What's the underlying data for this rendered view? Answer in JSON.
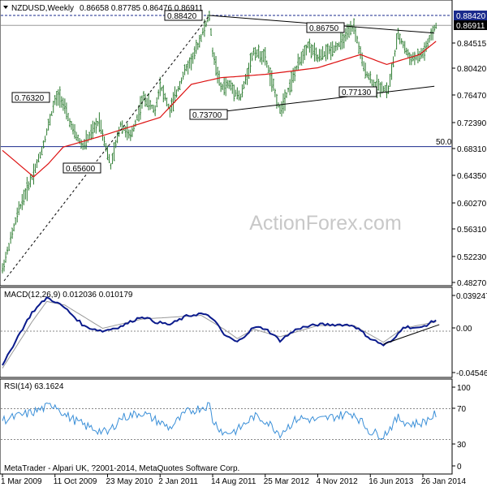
{
  "header": {
    "symbol_line": "NZDUSD,Weekly",
    "ohlc": "0.86658 0.87785 0.86476 0.86911"
  },
  "watermark": "ActionForex.com",
  "footer": "MetaTrader - Alpari UK, ?2001-2014, MetaQuotes Software Corp.",
  "colors": {
    "bars": "#2e7d32",
    "sma": "#dd1111",
    "macd": "#0a1a8c",
    "signal": "#999999",
    "rsi": "#3a8fd8",
    "tag_high": "#1a2a8c",
    "tag_last": "#000000"
  },
  "chart_data": [
    {
      "type": "candlestick",
      "panel": "price",
      "ylim": [
        0.4827,
        0.8936
      ],
      "y_ticks": [
        "0.88420",
        "0.86911",
        "0.84515",
        "0.80420",
        "0.76470",
        "0.72390",
        "0.68310",
        "0.64350",
        "0.60270",
        "0.56310",
        "0.52230",
        "0.48270"
      ],
      "x_ticks": [
        "1 Mar 2009",
        "11 Oct 2009",
        "23 May 2010",
        "2 Jan 2011",
        "14 Aug 2011",
        "25 Mar 2012",
        "4 Nov 2012",
        "16 Jun 2013",
        "26 Jan 2014"
      ],
      "price_tags": [
        {
          "text": "0.88420",
          "role": "high"
        },
        {
          "text": "0.86911",
          "role": "last"
        }
      ],
      "annotations": [
        "0.88420",
        "0.86750",
        "0.76320",
        "0.73700",
        "0.77130",
        "0.65600",
        "50.0"
      ],
      "levels": [
        0.8842,
        0.6845
      ],
      "price_path": [
        [
          "1 Mar 2009",
          0.5
        ],
        [
          "10 May 2009",
          0.59
        ],
        [
          "5 Jul 2009",
          0.64
        ],
        [
          "16 Aug 2009",
          0.68
        ],
        [
          "11 Oct 2009",
          0.755
        ],
        [
          "1 Nov 2009",
          0.7632
        ],
        [
          "27 Dec 2009",
          0.71
        ],
        [
          "7 Feb 2010",
          0.686
        ],
        [
          "18 Apr 2010",
          0.725
        ],
        [
          "6 Jun 2010",
          0.656
        ],
        [
          "18 Jul 2010",
          0.72
        ],
        [
          "29 Aug 2010",
          0.7
        ],
        [
          "24 Oct 2010",
          0.76
        ],
        [
          "12 Dec 2010",
          0.74
        ],
        [
          "2 Jan 2011",
          0.78
        ],
        [
          "13 Feb 2011",
          0.74
        ],
        [
          "17 Apr 2011",
          0.8
        ],
        [
          "22 May 2011",
          0.82
        ],
        [
          "31 Jul 2011",
          0.8842
        ],
        [
          "14 Aug 2011",
          0.83
        ],
        [
          "18 Sep 2011",
          0.775
        ],
        [
          "23 Oct 2011",
          0.78
        ],
        [
          "11 Dec 2011",
          0.76
        ],
        [
          "5 Feb 2012",
          0.83
        ],
        [
          "25 Mar 2012",
          0.82
        ],
        [
          "27 May 2012",
          0.74
        ],
        [
          "12 Aug 2012",
          0.81
        ],
        [
          "23 Sep 2012",
          0.84
        ],
        [
          "4 Nov 2012",
          0.82
        ],
        [
          "3 Feb 2013",
          0.84
        ],
        [
          "7 Apr 2013",
          0.8675
        ],
        [
          "19 May 2013",
          0.805
        ],
        [
          "30 Jun 2013",
          0.78
        ],
        [
          "1 Sep 2013",
          0.7713
        ],
        [
          "13 Oct 2013",
          0.855
        ],
        [
          "1 Dec 2013",
          0.82
        ],
        [
          "5 Jan 2014",
          0.82
        ],
        [
          "2 Feb 2014",
          0.83
        ],
        [
          "23 Mar 2014",
          0.8691
        ]
      ],
      "sma_path": [
        [
          "1 Mar 2009",
          0.68
        ],
        [
          "12 Jul 2009",
          0.64
        ],
        [
          "13 Sep 2009",
          0.66
        ],
        [
          "15 Nov 2009",
          0.685
        ],
        [
          "11 Apr 2010",
          0.7
        ],
        [
          "2 Jan 2011",
          0.73
        ],
        [
          "15 May 2011",
          0.78
        ],
        [
          "18 Sep 2011",
          0.79
        ],
        [
          "25 Mar 2012",
          0.795
        ],
        [
          "4 Nov 2012",
          0.805
        ],
        [
          "5 May 2013",
          0.825
        ],
        [
          "25 Aug 2013",
          0.81
        ],
        [
          "12 Jan 2014",
          0.825
        ],
        [
          "23 Mar 2014",
          0.845
        ]
      ],
      "trendlines": [
        {
          "from": [
            "31 Jul 2011",
            0.8842
          ],
          "to": [
            "16 Mar 2014",
            0.8575
          ],
          "style": "solid"
        },
        {
          "from": [
            "14 Aug 2011",
            0.737
          ],
          "to": [
            "16 Mar 2014",
            0.777
          ],
          "style": "solid"
        },
        {
          "from": [
            "8 Mar 2009",
            0.4827
          ],
          "to": [
            "31 Jul 2011",
            0.8842
          ],
          "style": "dashed"
        }
      ]
    },
    {
      "type": "line",
      "panel": "macd",
      "title": "MACD(12,26,9) 0.012036 0.010179",
      "ylim": [
        -0.0455,
        0.0393
      ],
      "y_ticks": [
        "0.039247",
        "0.00",
        "-0.045469"
      ],
      "series": [
        {
          "name": "MACD",
          "points": [
            [
              "1 Mar 2009",
              -0.038
            ],
            [
              "26 Apr 2009",
              -0.01
            ],
            [
              "5 Jul 2009",
              0.02
            ],
            [
              "6 Sep 2009",
              0.036
            ],
            [
              "11 Oct 2009",
              0.032
            ],
            [
              "22 Nov 2009",
              0.025
            ],
            [
              "14 Feb 2010",
              0.005
            ],
            [
              "2 May 2010",
              0.0
            ],
            [
              "18 Jul 2010",
              0.005
            ],
            [
              "17 Oct 2010",
              0.016
            ],
            [
              "12 Dec 2010",
              0.01
            ],
            [
              "13 Feb 2011",
              0.007
            ],
            [
              "24 Apr 2011",
              0.016
            ],
            [
              "26 Jun 2011",
              0.019
            ],
            [
              "14 Aug 2011",
              0.014
            ],
            [
              "2 Oct 2011",
              -0.004
            ],
            [
              "27 Nov 2011",
              -0.012
            ],
            [
              "5 Feb 2012",
              0.004
            ],
            [
              "25 Mar 2012",
              0.003
            ],
            [
              "27 May 2012",
              -0.01
            ],
            [
              "12 Aug 2012",
              0.003
            ],
            [
              "4 Nov 2012",
              0.007
            ],
            [
              "17 Feb 2013",
              0.007
            ],
            [
              "7 Apr 2013",
              0.006
            ],
            [
              "16 Jun 2013",
              -0.008
            ],
            [
              "11 Aug 2013",
              -0.015
            ],
            [
              "22 Sep 2013",
              -0.01
            ],
            [
              "3 Nov 2013",
              0.005
            ],
            [
              "12 Jan 2014",
              0.003
            ],
            [
              "23 Mar 2014",
              0.012
            ]
          ]
        },
        {
          "name": "Signal",
          "points": [
            [
              "1 Mar 2009",
              -0.04
            ],
            [
              "5 Jul 2009",
              0.01
            ],
            [
              "6 Sep 2009",
              0.032
            ],
            [
              "22 Nov 2009",
              0.028
            ],
            [
              "2 May 2010",
              0.003
            ],
            [
              "17 Oct 2010",
              0.013
            ],
            [
              "26 Jun 2011",
              0.017
            ],
            [
              "2 Oct 2011",
              0.002
            ],
            [
              "27 Nov 2011",
              -0.008
            ],
            [
              "5 Feb 2012",
              0.002
            ],
            [
              "27 May 2012",
              -0.006
            ],
            [
              "4 Nov 2012",
              0.006
            ],
            [
              "7 Apr 2013",
              0.006
            ],
            [
              "11 Aug 2013",
              -0.012
            ],
            [
              "3 Nov 2013",
              0.003
            ],
            [
              "23 Mar 2014",
              0.01
            ]
          ]
        }
      ],
      "trendline": {
        "from": [
          "11 Aug 2013",
          -0.014
        ],
        "to": [
          "6 Apr 2014",
          0.007
        ]
      }
    },
    {
      "type": "line",
      "panel": "rsi",
      "title": "RSI(14) 63.1624",
      "ylim": [
        0,
        100
      ],
      "y_ticks": [
        "100",
        "70",
        "30",
        "0"
      ],
      "levels": [
        70,
        30
      ],
      "series": [
        {
          "name": "RSI",
          "points": [
            [
              "1 Mar 2009",
              55
            ],
            [
              "5 Jul 2009",
              65
            ],
            [
              "11 Oct 2009",
              76
            ],
            [
              "22 Nov 2009",
              62
            ],
            [
              "14 Feb 2010",
              48
            ],
            [
              "23 May 2010",
              38
            ],
            [
              "18 Jul 2010",
              58
            ],
            [
              "17 Oct 2010",
              65
            ],
            [
              "2 Jan 2011",
              52
            ],
            [
              "13 Feb 2011",
              45
            ],
            [
              "24 Apr 2011",
              65
            ],
            [
              "31 Jul 2011",
              75
            ],
            [
              "14 Aug 2011",
              55
            ],
            [
              "2 Oct 2011",
              38
            ],
            [
              "27 Nov 2011",
              42
            ],
            [
              "5 Feb 2012",
              60
            ],
            [
              "25 Mar 2012",
              55
            ],
            [
              "27 May 2012",
              38
            ],
            [
              "12 Aug 2012",
              58
            ],
            [
              "4 Nov 2012",
              55
            ],
            [
              "17 Feb 2013",
              62
            ],
            [
              "7 Apr 2013",
              64
            ],
            [
              "16 Jun 2013",
              40
            ],
            [
              "11 Aug 2013",
              35
            ],
            [
              "13 Oct 2013",
              58
            ],
            [
              "1 Dec 2013",
              50
            ],
            [
              "26 Jan 2014",
              52
            ],
            [
              "23 Mar 2014",
              63
            ]
          ]
        }
      ]
    }
  ]
}
